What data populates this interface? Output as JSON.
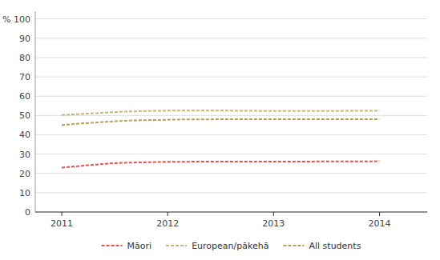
{
  "chart_data": {
    "type": "line",
    "x": [
      2011,
      2011.083,
      2011.167,
      2011.25,
      2011.333,
      2011.417,
      2011.5,
      2011.583,
      2011.667,
      2011.75,
      2011.833,
      2011.917,
      2012,
      2012.083,
      2012.167,
      2012.25,
      2012.333,
      2012.417,
      2012.5,
      2012.583,
      2012.667,
      2012.75,
      2012.833,
      2012.917,
      2013,
      2013.083,
      2013.167,
      2013.25,
      2013.333,
      2013.417,
      2013.5,
      2013.583,
      2013.667,
      2013.75,
      2013.833,
      2013.917,
      2014
    ],
    "series": [
      {
        "name": "Māori",
        "color": "#e8504a",
        "line_style": "dashed",
        "values": [
          23,
          23.4,
          23.8,
          24.2,
          24.6,
          25.0,
          25.3,
          25.5,
          25.6,
          25.7,
          25.8,
          25.9,
          26.0,
          26.0,
          26.0,
          26.1,
          26.1,
          26.1,
          26.1,
          26.1,
          26.1,
          26.1,
          26.1,
          26.1,
          26.1,
          26.1,
          26.1,
          26.1,
          26.1,
          26.2,
          26.2,
          26.2,
          26.2,
          26.2,
          26.2,
          26.2,
          26.3
        ]
      },
      {
        "name": "European/pākehā",
        "color": "#c8b57a",
        "line_style": "dashed",
        "values": [
          50.2,
          50.5,
          50.7,
          51.0,
          51.2,
          51.5,
          51.7,
          52.0,
          52.1,
          52.2,
          52.3,
          52.4,
          52.5,
          52.5,
          52.5,
          52.5,
          52.5,
          52.5,
          52.5,
          52.5,
          52.4,
          52.4,
          52.4,
          52.3,
          52.3,
          52.3,
          52.3,
          52.3,
          52.3,
          52.3,
          52.3,
          52.3,
          52.4,
          52.4,
          52.4,
          52.4,
          52.5
        ]
      },
      {
        "name": "All students",
        "color": "#b5a055",
        "line_style": "dashed",
        "values": [
          45.0,
          45.4,
          45.8,
          46.1,
          46.4,
          46.7,
          47.0,
          47.2,
          47.4,
          47.5,
          47.6,
          47.7,
          47.8,
          47.9,
          48.0,
          48.0,
          48.0,
          48.0,
          48.1,
          48.1,
          48.1,
          48.1,
          48.1,
          48.1,
          48.1,
          48.1,
          48.1,
          48.1,
          48.1,
          48.1,
          48.1,
          48.1,
          48.1,
          48.1,
          48.1,
          48.1,
          48.1
        ]
      }
    ],
    "xlim": [
      2010.75,
      2014.45
    ],
    "xticks": [
      2011,
      2012,
      2013,
      2014
    ],
    "ylim": [
      0,
      104
    ],
    "yticks": [
      0,
      10,
      20,
      30,
      40,
      50,
      60,
      70,
      80,
      90,
      {
        "value": 100,
        "label": "% 100"
      }
    ],
    "grid": true,
    "legend": "bottom"
  }
}
